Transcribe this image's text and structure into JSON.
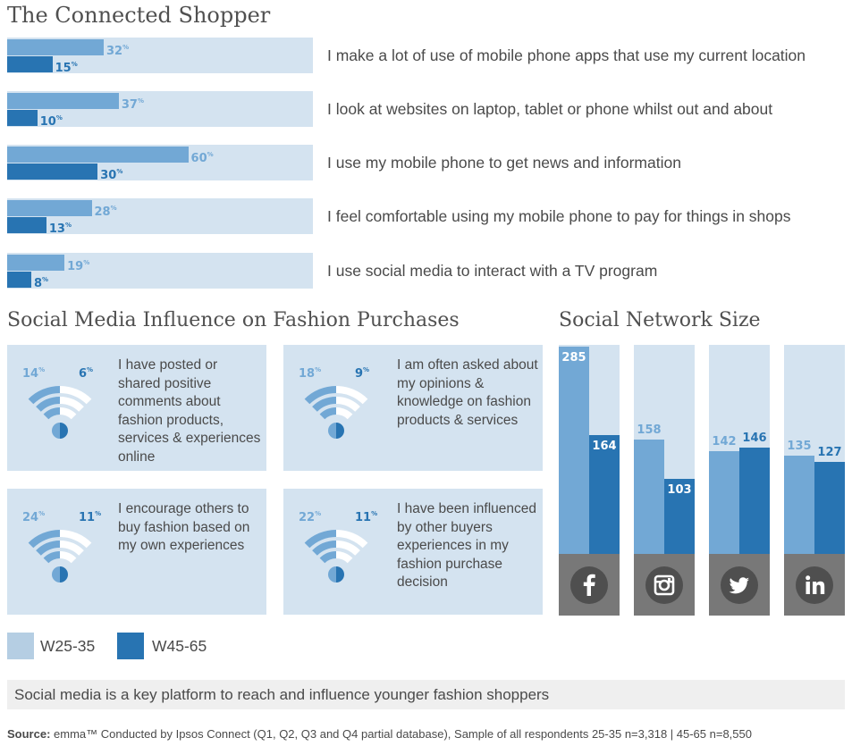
{
  "colors": {
    "w25_35": "#72a8d5",
    "w45_65": "#2874b2",
    "panel": "#d4e3f0",
    "icon_bg": "#787878",
    "icon_circle": "#4f4f4f"
  },
  "connected": {
    "title": "The Connected Shopper",
    "pct_suffix": "%",
    "rows": [
      {
        "label": "I make a lot of use of mobile phone apps that use my current location",
        "a": 32,
        "b": 15
      },
      {
        "label": "I look at websites on laptop, tablet or phone whilst out and about",
        "a": 37,
        "b": 10
      },
      {
        "label": "I use my mobile phone to get news and information",
        "a": 60,
        "b": 30
      },
      {
        "label": "I feel comfortable using my mobile phone to pay for things in shops",
        "a": 28,
        "b": 13
      },
      {
        "label": "I use social media to interact with a TV program",
        "a": 19,
        "b": 8
      }
    ]
  },
  "social_influence": {
    "title": "Social Media Influence on Fashion Purchases",
    "items": [
      {
        "a": "14",
        "b": "6",
        "text": "I have posted or shared positive comments about fashion products, services & experiences online"
      },
      {
        "a": "18",
        "b": "9",
        "text": "I am often asked about my opinions & knowledge on fashion products & services"
      },
      {
        "a": "24",
        "b": "11",
        "text": "I encourage others to buy fashion based on my own experiences"
      },
      {
        "a": "22",
        "b": "11",
        "text": "I have been influenced by other buyers experiences in my fashion purchase decision"
      }
    ]
  },
  "network": {
    "title": "Social Network Size",
    "columns": [
      {
        "icon": "facebook-icon",
        "a": 285,
        "b": 164
      },
      {
        "icon": "instagram-icon",
        "a": 158,
        "b": 103
      },
      {
        "icon": "twitter-icon",
        "a": 142,
        "b": 146
      },
      {
        "icon": "linkedin-icon",
        "a": 135,
        "b": 127
      }
    ]
  },
  "legend": {
    "a": "W25-35",
    "b": "W45-65"
  },
  "banner": "Social media is a key platform to reach and influence younger fashion shoppers",
  "source": {
    "label": "Source:",
    "text": " emma™ Conducted by Ipsos Connect (Q1, Q2, Q3 and Q4 partial database), Sample of all respondents 25-35 n=3,318 | 45-65 n=8,550"
  },
  "chart_data": [
    {
      "type": "bar",
      "orientation": "horizontal",
      "title": "The Connected Shopper",
      "categories": [
        "I make a lot of use of mobile phone apps that use my current location",
        "I look at websites on laptop, tablet or phone whilst out and about",
        "I use my mobile phone to get news and information",
        "I feel comfortable using my mobile phone to pay for things in shops",
        "I use social media to interact with a TV program"
      ],
      "series": [
        {
          "name": "W25-35",
          "values": [
            32,
            37,
            60,
            28,
            19
          ]
        },
        {
          "name": "W45-65",
          "values": [
            15,
            10,
            30,
            13,
            8
          ]
        }
      ],
      "xlim": [
        0,
        100
      ]
    },
    {
      "type": "bar",
      "title": "Social Network Size",
      "categories": [
        "facebook",
        "instagram",
        "twitter",
        "linkedin"
      ],
      "series": [
        {
          "name": "W25-35",
          "values": [
            285,
            158,
            142,
            135
          ]
        },
        {
          "name": "W45-65",
          "values": [
            164,
            103,
            146,
            127
          ]
        }
      ],
      "legend": "bottom-left"
    }
  ]
}
